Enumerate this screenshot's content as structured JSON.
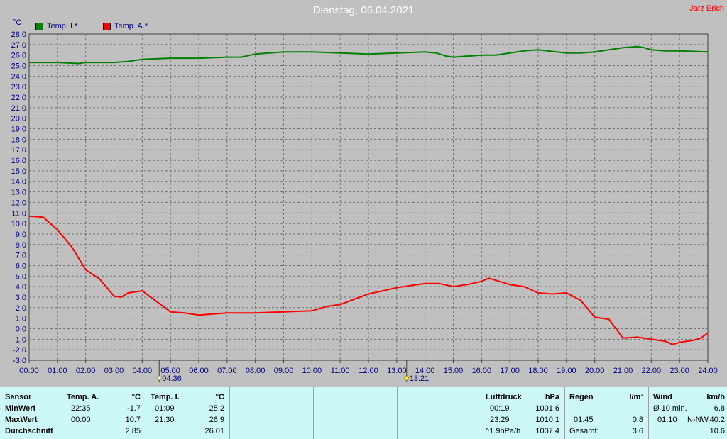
{
  "title": "Dienstag, 06.04.2021",
  "author": "Jarz Erich",
  "unit": "°C",
  "legend": [
    {
      "label": "Temp. I.*",
      "color": "#008000"
    },
    {
      "label": "Temp. A.*",
      "color": "#ff0000"
    }
  ],
  "sun_events": [
    {
      "label": "04:36",
      "hour": 4.6,
      "icon": "sunrise-icon"
    },
    {
      "label": "13:21",
      "hour": 13.35,
      "icon": "sun-peak-icon"
    }
  ],
  "chart_data": {
    "type": "line",
    "title": "Dienstag, 06.04.2021",
    "ylabel": "°C",
    "ylim": [
      -3.0,
      28.0
    ],
    "y_ticks": [
      "28.0",
      "27.0",
      "26.0",
      "25.0",
      "24.0",
      "23.0",
      "22.0",
      "21.0",
      "20.0",
      "19.0",
      "18.0",
      "17.0",
      "16.0",
      "15.0",
      "14.0",
      "13.0",
      "12.0",
      "11.0",
      "10.0",
      "9.0",
      "8.0",
      "7.0",
      "6.0",
      "5.0",
      "4.0",
      "3.0",
      "2.0",
      "1.0",
      "0.0",
      "-1.0",
      "-2.0",
      "-3.0"
    ],
    "x_ticks": [
      "00:00",
      "01:00",
      "02:00",
      "03:00",
      "04:00",
      "05:00",
      "06:00",
      "07:00",
      "08:00",
      "09:00",
      "10:00",
      "11:00",
      "12:00",
      "13:00",
      "14:00",
      "15:00",
      "16:00",
      "17:00",
      "18:00",
      "19:00",
      "20:00",
      "21:00",
      "22:00",
      "23:00",
      "24:00"
    ],
    "xlim": [
      0,
      24
    ],
    "grid": true,
    "legend_position": "top-left",
    "series": [
      {
        "name": "Temp. I.*",
        "color": "#008000",
        "x": [
          0,
          1,
          1.75,
          2,
          3,
          3.5,
          4,
          5,
          6,
          7,
          7.5,
          8,
          9,
          10,
          11,
          12,
          13,
          14,
          14.4,
          14.75,
          15,
          16,
          16.5,
          17,
          17.5,
          18,
          19,
          19.5,
          20,
          20.5,
          21,
          21.5,
          21.75,
          22,
          22.5,
          23,
          24
        ],
        "y": [
          25.3,
          25.3,
          25.2,
          25.3,
          25.3,
          25.4,
          25.6,
          25.7,
          25.7,
          25.8,
          25.8,
          26.1,
          26.3,
          26.3,
          26.2,
          26.1,
          26.2,
          26.3,
          26.2,
          25.9,
          25.8,
          26.0,
          26.0,
          26.2,
          26.4,
          26.5,
          26.2,
          26.2,
          26.3,
          26.5,
          26.7,
          26.8,
          26.7,
          26.5,
          26.4,
          26.4,
          26.3
        ]
      },
      {
        "name": "Temp. A.*",
        "color": "#ff0000",
        "x": [
          0,
          0.5,
          1,
          1.5,
          2,
          2.5,
          3,
          3.25,
          3.5,
          4,
          4.5,
          5,
          5.5,
          6,
          6.5,
          7,
          8,
          9,
          10,
          10.5,
          11,
          11.5,
          12,
          12.5,
          13,
          13.5,
          14,
          14.5,
          15,
          15.5,
          16,
          16.25,
          16.5,
          17,
          17.5,
          18,
          18.5,
          19,
          19.5,
          20,
          20.5,
          21,
          21.5,
          22,
          22.5,
          22.75,
          23,
          23.5,
          23.75,
          24
        ],
        "y": [
          10.7,
          10.6,
          9.4,
          7.8,
          5.6,
          4.7,
          3.1,
          3.0,
          3.4,
          3.6,
          2.6,
          1.6,
          1.5,
          1.3,
          1.4,
          1.5,
          1.5,
          1.6,
          1.7,
          2.1,
          2.3,
          2.8,
          3.3,
          3.6,
          3.9,
          4.1,
          4.3,
          4.3,
          4.0,
          4.2,
          4.5,
          4.8,
          4.6,
          4.2,
          4.0,
          3.4,
          3.3,
          3.4,
          2.7,
          1.1,
          0.9,
          -0.9,
          -0.8,
          -1.0,
          -1.2,
          -1.5,
          -1.3,
          -1.1,
          -0.9,
          -0.4
        ]
      }
    ]
  },
  "stats": {
    "sensor": {
      "header": "Sensor",
      "rows": [
        "MinWert",
        "MaxWert",
        "Durchschnitt"
      ]
    },
    "temp_a": {
      "header": "Temp. A.",
      "unit": "°C",
      "min_time": "22:35",
      "min": "-1.7",
      "max_time": "00:00",
      "max": "10.7",
      "avg": "2.85"
    },
    "temp_i": {
      "header": "Temp. I.",
      "unit": "°C",
      "min_time": "01:09",
      "min": "25.2",
      "max_time": "21:30",
      "max": "26.9",
      "avg": "26.01"
    },
    "pressure": {
      "header": "Luftdruck",
      "unit": "hPa",
      "min_time": "00:19",
      "min": "1001.6",
      "max_time": "23:29",
      "max": "1010.1",
      "trend": "^1.9hPa/h",
      "current": "1007.4"
    },
    "rain": {
      "header": "Regen",
      "unit": "l/m²",
      "max_time": "01:45",
      "max": "0.8",
      "total_label": "Gesamt:",
      "total": "3.6"
    },
    "wind": {
      "header": "Wind",
      "unit": "km/h",
      "avg_label": "Ø 10 min.",
      "avg": "6.8",
      "max_time": "01:10",
      "max_dir": "N-NW",
      "max": "40.2",
      "current": "10.6"
    }
  }
}
